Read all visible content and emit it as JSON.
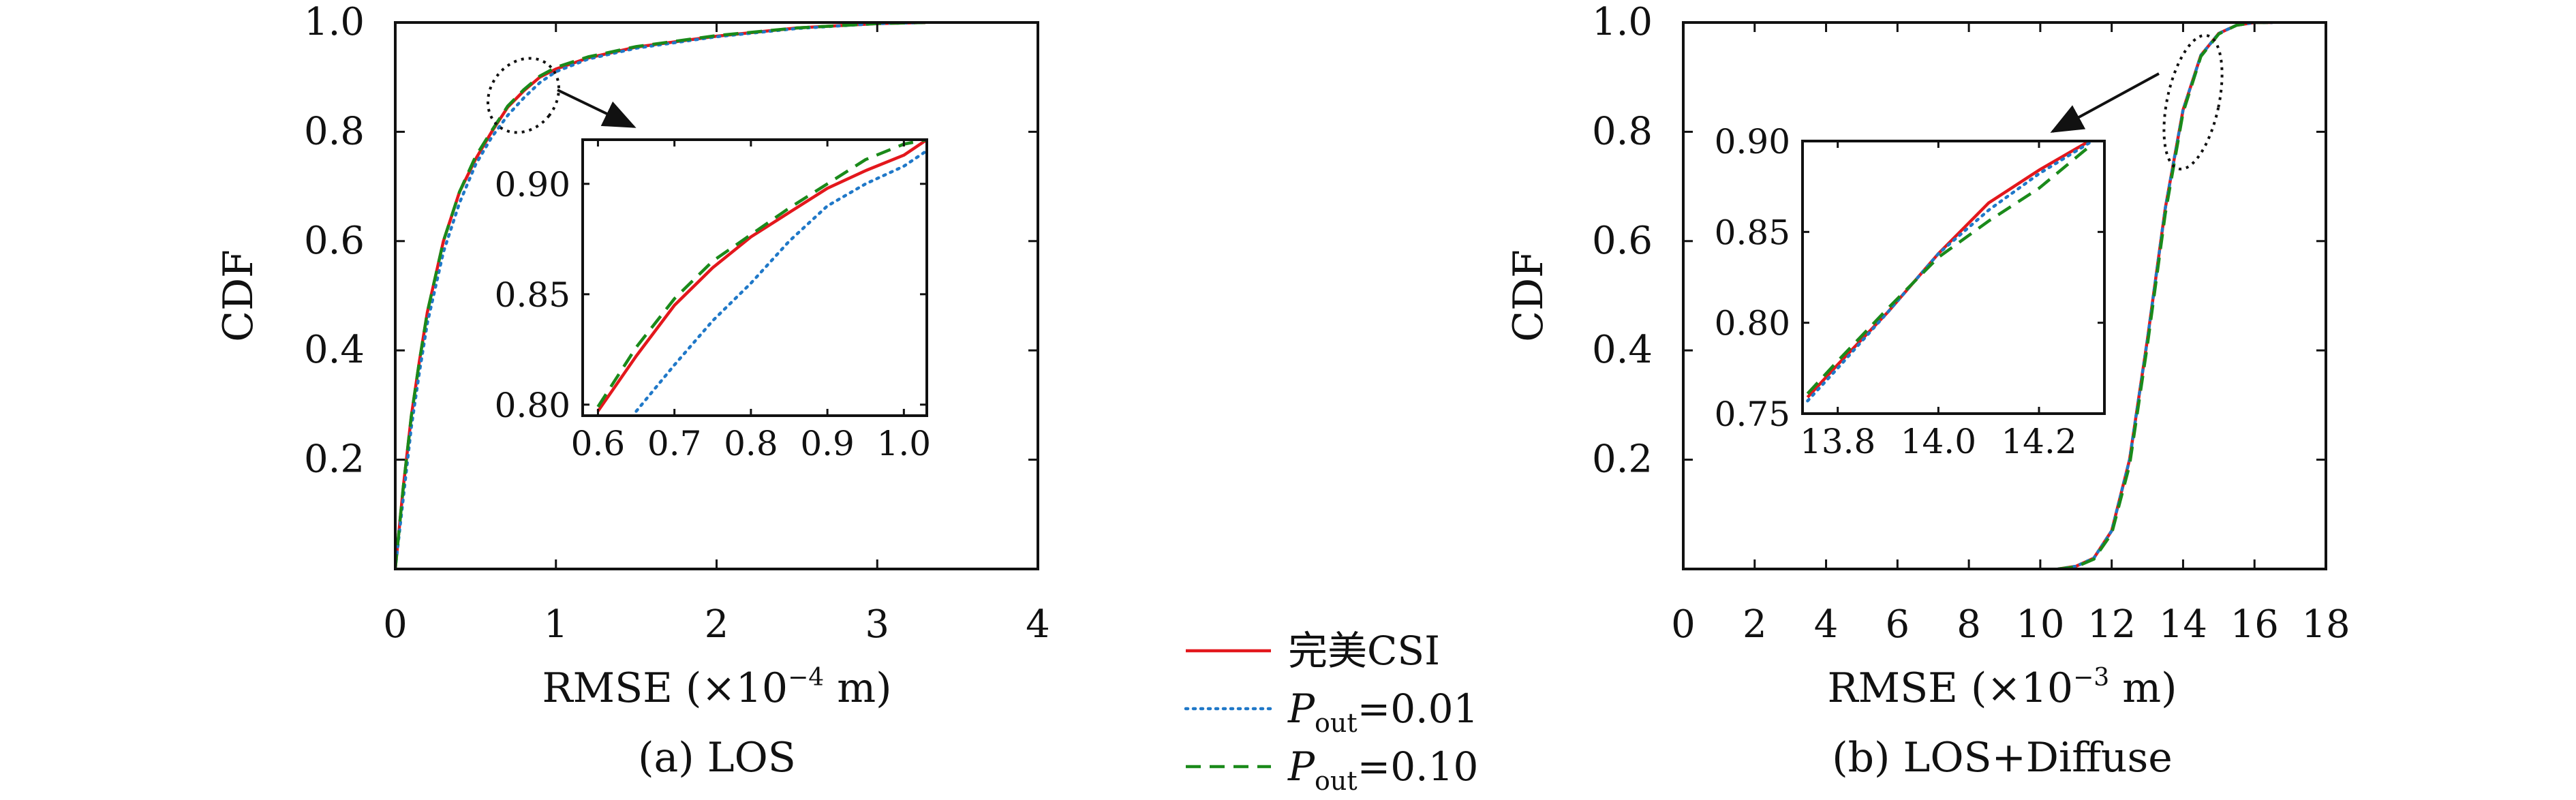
{
  "figure": {
    "legend": [
      {
        "label": "完美CSI",
        "color": "#e3171c",
        "style": "solid"
      },
      {
        "label_main": "P",
        "label_sub": "out",
        "label_tail": "=0.01",
        "color": "#1f78c8",
        "style": "dotted"
      },
      {
        "label_main": "P",
        "label_sub": "out",
        "label_tail": "=0.10",
        "color": "#1a8a1a",
        "style": "dashed"
      }
    ]
  },
  "chart_data": [
    {
      "type": "line",
      "caption": "(a) LOS",
      "xlabel": "RMSE (×10",
      "xlabel_exp": "−4",
      "xlabel_unit": " m)",
      "ylabel": "CDF",
      "xlim": [
        0,
        4
      ],
      "ylim": [
        0,
        1
      ],
      "xticks": [
        "0",
        "1",
        "2",
        "3",
        "4"
      ],
      "yticks": [
        "0.2",
        "0.4",
        "0.6",
        "0.8",
        "1.0"
      ],
      "series": [
        {
          "name": "完美CSI",
          "color": "#e3171c",
          "style": "solid",
          "x": [
            0.0,
            0.05,
            0.1,
            0.15,
            0.2,
            0.3,
            0.4,
            0.5,
            0.6,
            0.7,
            0.8,
            0.9,
            1.0,
            1.2,
            1.5,
            2.0,
            2.5,
            3.0,
            3.3
          ],
          "y": [
            0.0,
            0.15,
            0.28,
            0.38,
            0.47,
            0.6,
            0.69,
            0.75,
            0.8,
            0.845,
            0.875,
            0.9,
            0.915,
            0.935,
            0.955,
            0.975,
            0.99,
            0.998,
            1.0
          ]
        },
        {
          "name": "P_out=0.01",
          "color": "#1f78c8",
          "style": "dotted",
          "x": [
            0.0,
            0.05,
            0.1,
            0.15,
            0.2,
            0.3,
            0.4,
            0.5,
            0.6,
            0.7,
            0.8,
            0.9,
            1.0,
            1.2,
            1.5,
            2.0,
            2.5,
            3.0,
            3.3
          ],
          "y": [
            0.0,
            0.13,
            0.26,
            0.36,
            0.45,
            0.58,
            0.67,
            0.74,
            0.79,
            0.83,
            0.862,
            0.89,
            0.91,
            0.933,
            0.953,
            0.974,
            0.989,
            0.998,
            1.0
          ]
        },
        {
          "name": "P_out=0.10",
          "color": "#1a8a1a",
          "style": "dashed",
          "x": [
            0.0,
            0.05,
            0.1,
            0.15,
            0.2,
            0.3,
            0.4,
            0.5,
            0.6,
            0.7,
            0.8,
            0.9,
            1.0,
            1.2,
            1.5,
            2.0,
            2.5,
            3.0,
            3.3
          ],
          "y": [
            0.0,
            0.15,
            0.28,
            0.38,
            0.47,
            0.6,
            0.69,
            0.755,
            0.802,
            0.847,
            0.877,
            0.902,
            0.918,
            0.937,
            0.956,
            0.976,
            0.99,
            0.998,
            1.0
          ]
        }
      ],
      "inset": {
        "xlim": [
          0.58,
          1.03
        ],
        "ylim": [
          0.795,
          0.92
        ],
        "xticks": [
          "0.6",
          "0.7",
          "0.8",
          "0.9",
          "1.0"
        ],
        "yticks": [
          "0.80",
          "0.85",
          "0.90"
        ],
        "series": [
          {
            "name": "完美CSI",
            "color": "#e3171c",
            "style": "solid",
            "x": [
              0.6,
              0.65,
              0.7,
              0.75,
              0.8,
              0.85,
              0.9,
              0.95,
              1.0,
              1.03
            ],
            "y": [
              0.797,
              0.822,
              0.845,
              0.862,
              0.876,
              0.887,
              0.898,
              0.906,
              0.913,
              0.92
            ]
          },
          {
            "name": "P_out=0.01",
            "color": "#1f78c8",
            "style": "dotted",
            "x": [
              0.65,
              0.7,
              0.75,
              0.8,
              0.85,
              0.9,
              0.95,
              1.0,
              1.03
            ],
            "y": [
              0.797,
              0.818,
              0.838,
              0.855,
              0.874,
              0.89,
              0.9,
              0.908,
              0.915
            ]
          },
          {
            "name": "P_out=0.10",
            "color": "#1a8a1a",
            "style": "dashed",
            "x": [
              0.6,
              0.65,
              0.7,
              0.75,
              0.8,
              0.85,
              0.9,
              0.95,
              1.0,
              1.03
            ],
            "y": [
              0.799,
              0.826,
              0.848,
              0.865,
              0.877,
              0.889,
              0.9,
              0.911,
              0.918,
              0.92
            ]
          }
        ]
      }
    },
    {
      "type": "line",
      "caption": "(b) LOS+Diffuse",
      "xlabel": "RMSE (×10",
      "xlabel_exp": "−3",
      "xlabel_unit": " m)",
      "ylabel": "CDF",
      "xlim": [
        0,
        18
      ],
      "ylim": [
        0,
        1
      ],
      "xticks": [
        "0",
        "2",
        "4",
        "6",
        "8",
        "10",
        "12",
        "14",
        "16",
        "18"
      ],
      "yticks": [
        "0.2",
        "0.4",
        "0.6",
        "0.8",
        "1.0"
      ],
      "series": [
        {
          "name": "完美CSI",
          "color": "#e3171c",
          "style": "solid",
          "x": [
            10.5,
            11.0,
            11.5,
            12.0,
            12.5,
            13.0,
            13.5,
            14.0,
            14.5,
            15.0,
            15.5,
            16.0,
            16.5
          ],
          "y": [
            0.0,
            0.005,
            0.02,
            0.07,
            0.2,
            0.42,
            0.66,
            0.84,
            0.94,
            0.98,
            0.995,
            1.0,
            1.0
          ]
        },
        {
          "name": "P_out=0.01",
          "color": "#1f78c8",
          "style": "dotted",
          "x": [
            10.5,
            11.0,
            11.5,
            12.0,
            12.5,
            13.0,
            13.5,
            14.0,
            14.5,
            15.0,
            15.5,
            16.0,
            16.5
          ],
          "y": [
            0.0,
            0.005,
            0.02,
            0.07,
            0.2,
            0.42,
            0.66,
            0.84,
            0.94,
            0.98,
            0.995,
            1.0,
            1.0
          ]
        },
        {
          "name": "P_out=0.10",
          "color": "#1a8a1a",
          "style": "dashed",
          "x": [
            10.5,
            11.0,
            11.5,
            12.0,
            12.5,
            13.0,
            13.5,
            14.0,
            14.5,
            15.0,
            15.5,
            16.0,
            16.5
          ],
          "y": [
            0.0,
            0.004,
            0.018,
            0.065,
            0.19,
            0.41,
            0.65,
            0.835,
            0.938,
            0.979,
            0.995,
            1.0,
            1.0
          ]
        }
      ],
      "inset": {
        "xlim": [
          13.73,
          14.33
        ],
        "ylim": [
          0.75,
          0.9
        ],
        "xticks": [
          "13.8",
          "14.0",
          "14.2"
        ],
        "yticks": [
          "0.75",
          "0.80",
          "0.85",
          "0.90"
        ],
        "series": [
          {
            "name": "完美CSI",
            "color": "#e3171c",
            "style": "solid",
            "x": [
              13.74,
              13.8,
              13.9,
              14.0,
              14.1,
              14.2,
              14.3
            ],
            "y": [
              0.759,
              0.777,
              0.806,
              0.838,
              0.866,
              0.884,
              0.9
            ]
          },
          {
            "name": "P_out=0.01",
            "color": "#1f78c8",
            "style": "dotted",
            "x": [
              13.74,
              13.8,
              13.9,
              14.0,
              14.1,
              14.2,
              14.3
            ],
            "y": [
              0.757,
              0.775,
              0.806,
              0.838,
              0.862,
              0.882,
              0.899
            ]
          },
          {
            "name": "P_out=0.10",
            "color": "#1a8a1a",
            "style": "dashed",
            "x": [
              13.74,
              13.8,
              13.9,
              14.0,
              14.1,
              14.2,
              14.3
            ],
            "y": [
              0.761,
              0.779,
              0.808,
              0.836,
              0.856,
              0.874,
              0.897
            ]
          }
        ]
      }
    }
  ]
}
